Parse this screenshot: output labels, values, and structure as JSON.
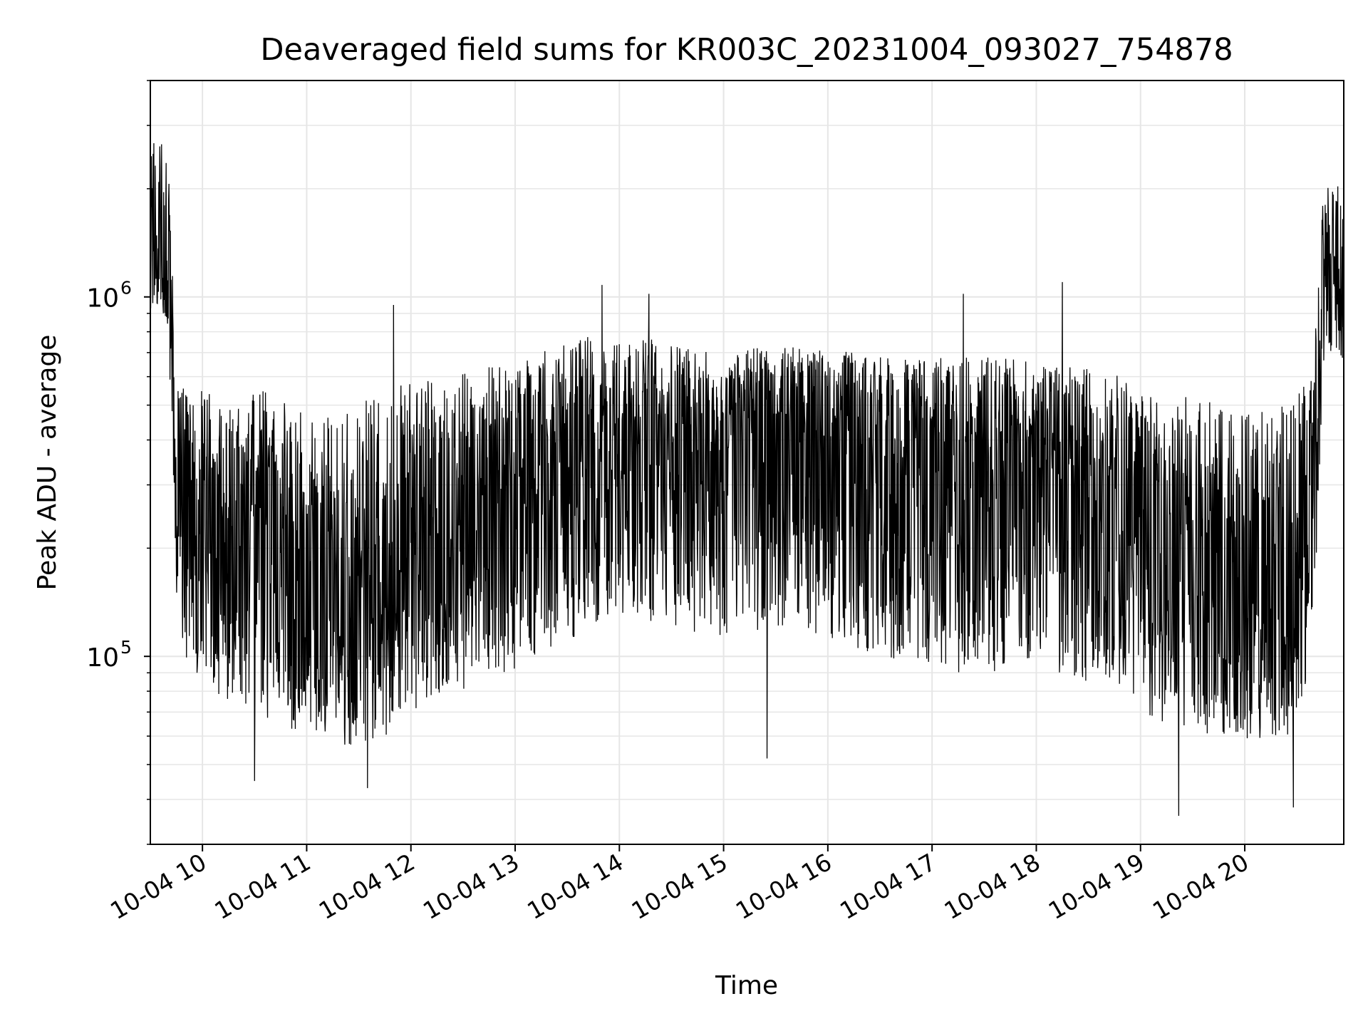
{
  "chart_data": {
    "type": "line",
    "title": "Deaveraged field sums for KR003C_20231004_093027_754878",
    "xlabel": "Time",
    "ylabel": "Peak ADU - average",
    "y_scale": "log",
    "x_axis_type": "datetime",
    "xlim": [
      "2023-10-04 09:30",
      "2023-10-04 20:57"
    ],
    "ylim": [
      30000,
      4000000
    ],
    "x_ticks": [
      {
        "value": "2023-10-04 10:00",
        "label": "10-04 10"
      },
      {
        "value": "2023-10-04 11:00",
        "label": "10-04 11"
      },
      {
        "value": "2023-10-04 12:00",
        "label": "10-04 12"
      },
      {
        "value": "2023-10-04 13:00",
        "label": "10-04 13"
      },
      {
        "value": "2023-10-04 14:00",
        "label": "10-04 14"
      },
      {
        "value": "2023-10-04 15:00",
        "label": "10-04 15"
      },
      {
        "value": "2023-10-04 16:00",
        "label": "10-04 16"
      },
      {
        "value": "2023-10-04 17:00",
        "label": "10-04 17"
      },
      {
        "value": "2023-10-04 18:00",
        "label": "10-04 18"
      },
      {
        "value": "2023-10-04 19:00",
        "label": "10-04 19"
      },
      {
        "value": "2023-10-04 20:00",
        "label": "10-04 20"
      }
    ],
    "y_ticks": [
      {
        "value": 100000,
        "label_base": "10",
        "label_exp": "5"
      },
      {
        "value": 1000000,
        "label_base": "10",
        "label_exp": "6"
      }
    ],
    "grid": true,
    "line_color": "#000000",
    "grid_color": "#e6e6e6",
    "series": [
      {
        "name": "",
        "x": [
          "2023-10-04 09:30",
          "2023-10-04 09:35",
          "2023-10-04 09:40",
          "2023-10-04 09:42",
          "2023-10-04 09:45",
          "2023-10-04 09:50",
          "2023-10-04 10:00",
          "2023-10-04 10:15",
          "2023-10-04 10:30",
          "2023-10-04 10:45",
          "2023-10-04 11:00",
          "2023-10-04 11:15",
          "2023-10-04 11:30",
          "2023-10-04 11:45",
          "2023-10-04 12:00",
          "2023-10-04 12:15",
          "2023-10-04 12:30",
          "2023-10-04 12:45",
          "2023-10-04 13:00",
          "2023-10-04 13:15",
          "2023-10-04 13:30",
          "2023-10-04 13:45",
          "2023-10-04 14:00",
          "2023-10-04 14:15",
          "2023-10-04 14:30",
          "2023-10-04 14:45",
          "2023-10-04 15:00",
          "2023-10-04 15:15",
          "2023-10-04 15:30",
          "2023-10-04 15:45",
          "2023-10-04 16:00",
          "2023-10-04 16:15",
          "2023-10-04 16:30",
          "2023-10-04 16:45",
          "2023-10-04 17:00",
          "2023-10-04 17:15",
          "2023-10-04 17:30",
          "2023-10-04 17:45",
          "2023-10-04 18:00",
          "2023-10-04 18:15",
          "2023-10-04 18:30",
          "2023-10-04 18:45",
          "2023-10-04 19:00",
          "2023-10-04 19:15",
          "2023-10-04 19:30",
          "2023-10-04 19:45",
          "2023-10-04 20:00",
          "2023-10-04 20:15",
          "2023-10-04 20:30",
          "2023-10-04 20:40",
          "2023-10-04 20:45",
          "2023-10-04 20:50",
          "2023-10-04 20:57"
        ],
        "upper": [
          2600000,
          2800000,
          2500000,
          1500000,
          700000,
          550000,
          550000,
          520000,
          560000,
          520000,
          480000,
          500000,
          520000,
          560000,
          600000,
          580000,
          620000,
          640000,
          650000,
          700000,
          760000,
          780000,
          760000,
          770000,
          740000,
          720000,
          680000,
          720000,
          740000,
          720000,
          720000,
          700000,
          700000,
          700000,
          700000,
          690000,
          680000,
          680000,
          650000,
          640000,
          640000,
          620000,
          540000,
          520000,
          540000,
          500000,
          480000,
          480000,
          520000,
          700000,
          1900000,
          2100000,
          2000000
        ],
        "center": [
          1400000,
          1500000,
          1300000,
          900000,
          350000,
          260000,
          250000,
          230000,
          220000,
          200000,
          170000,
          160000,
          150000,
          170000,
          200000,
          210000,
          230000,
          250000,
          260000,
          300000,
          350000,
          380000,
          400000,
          400000,
          380000,
          360000,
          350000,
          370000,
          400000,
          380000,
          380000,
          360000,
          340000,
          330000,
          330000,
          320000,
          320000,
          330000,
          330000,
          320000,
          300000,
          280000,
          240000,
          210000,
          190000,
          170000,
          150000,
          145000,
          150000,
          300000,
          1100000,
          1200000,
          1100000
        ],
        "lower": [
          900000,
          950000,
          800000,
          500000,
          150000,
          100000,
          85000,
          75000,
          70000,
          65000,
          60000,
          58000,
          55000,
          60000,
          70000,
          75000,
          80000,
          85000,
          90000,
          100000,
          110000,
          120000,
          130000,
          125000,
          120000,
          115000,
          110000,
          115000,
          120000,
          115000,
          110000,
          105000,
          100000,
          95000,
          95000,
          90000,
          90000,
          90000,
          90000,
          90000,
          85000,
          80000,
          70000,
          65000,
          62000,
          60000,
          58000,
          60000,
          60000,
          120000,
          600000,
          700000,
          650000
        ],
        "min_spikes": [
          {
            "x": "2023-10-04 11:35",
            "y": 43000
          },
          {
            "x": "2023-10-04 19:22",
            "y": 36000
          },
          {
            "x": "2023-10-04 20:28",
            "y": 38000
          },
          {
            "x": "2023-10-04 15:25",
            "y": 52000
          },
          {
            "x": "2023-10-04 10:30",
            "y": 45000
          }
        ],
        "max_spikes": [
          {
            "x": "2023-10-04 13:50",
            "y": 1080000
          },
          {
            "x": "2023-10-04 14:17",
            "y": 1020000
          },
          {
            "x": "2023-10-04 17:18",
            "y": 1020000
          },
          {
            "x": "2023-10-04 18:15",
            "y": 1100000
          },
          {
            "x": "2023-10-04 11:50",
            "y": 950000
          }
        ]
      }
    ]
  }
}
